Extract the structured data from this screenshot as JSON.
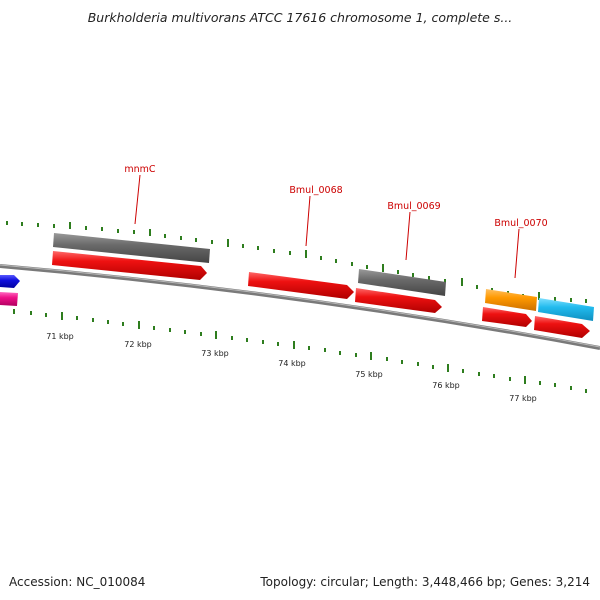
{
  "header": {
    "title": "Burkholderia multivorans ATCC 17616 chromosome 1, complete s..."
  },
  "footer": {
    "accession": "Accession: NC_010084",
    "summary": "Topology: circular; Length: 3,448,466 bp; Genes: 3,214"
  },
  "colors": {
    "backbone": "#808080",
    "tick": "#2e7d1e",
    "label": "#cc0000",
    "cds": "#ee1111",
    "gene": "#666666",
    "orange_feature": "#ff9900",
    "cyan_feature": "#22bbee",
    "blue_feature": "#1111dd",
    "pink_feature": "#ee1188"
  },
  "scale": {
    "unit": "kbp",
    "labels": [
      "71 kbp",
      "72 kbp",
      "73 kbp",
      "74 kbp",
      "75 kbp",
      "76 kbp",
      "77 kbp"
    ]
  },
  "gene_labels": [
    "mnmC",
    "Bmul_0068",
    "Bmul_0069",
    "Bmul_0070"
  ]
}
